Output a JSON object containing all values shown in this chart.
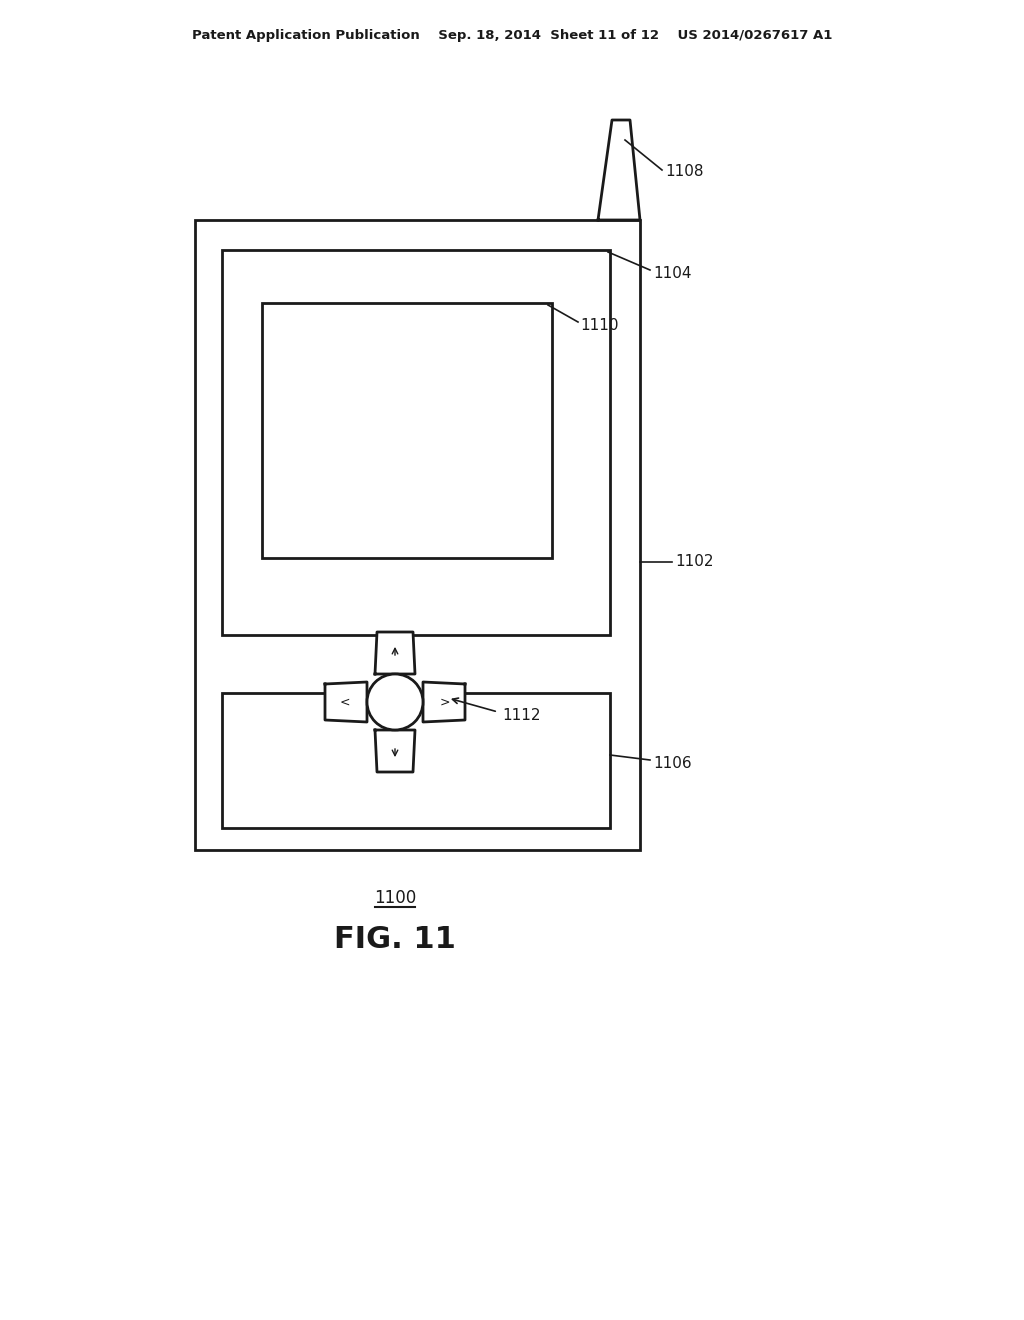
{
  "bg_color": "#ffffff",
  "line_color": "#1a1a1a",
  "lw": 2.0,
  "header_text": "Patent Application Publication    Sep. 18, 2014  Sheet 11 of 12    US 2014/0267617 A1",
  "fig_label": "1100",
  "fig_title": "FIG. 11"
}
